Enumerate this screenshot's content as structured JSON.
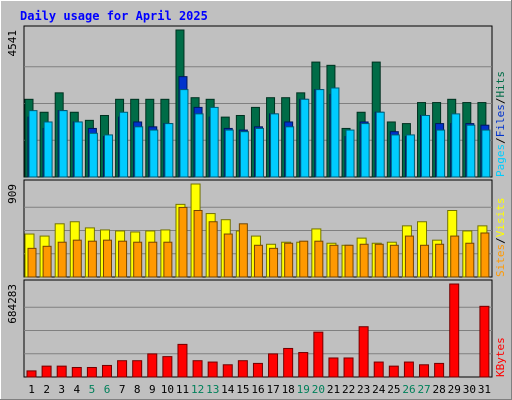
{
  "chart_data": {
    "type": "bar",
    "title": "Daily usage for April 2025",
    "categories": [
      "1",
      "2",
      "3",
      "4",
      "5",
      "6",
      "7",
      "8",
      "9",
      "10",
      "11",
      "12",
      "13",
      "14",
      "15",
      "16",
      "17",
      "18",
      "19",
      "20",
      "21",
      "22",
      "23",
      "24",
      "25",
      "26",
      "27",
      "28",
      "29",
      "30",
      "31"
    ],
    "weekend_days": [
      "5",
      "6",
      "12",
      "13",
      "19",
      "20",
      "26",
      "27"
    ],
    "panels": [
      {
        "id": "hits-panel",
        "scale_label": "4541",
        "ymax": 4541,
        "axis_label_parts": [
          "Pages",
          "/",
          "Files",
          "/",
          "Hits"
        ],
        "series": [
          {
            "name": "Hits",
            "color": "#006c47",
            "values": [
              2400,
              2000,
              2600,
              2000,
              1750,
              1900,
              2400,
              2400,
              2400,
              2400,
              4541,
              2450,
              2400,
              1850,
              1900,
              2150,
              2450,
              2450,
              2600,
              3550,
              3450,
              1500,
              2000,
              3550,
              1700,
              1650,
              2300,
              2300,
              2400,
              2300,
              2300
            ]
          },
          {
            "name": "Files",
            "color": "#0033cc",
            "values": [
              1850,
              1500,
              2050,
              1700,
              1500,
              1250,
              1850,
              1700,
              1550,
              1650,
              3100,
              2150,
              1850,
              1500,
              1450,
              1550,
              1950,
              1700,
              2400,
              2700,
              2550,
              1250,
              1700,
              2000,
              1400,
              1250,
              1900,
              1650,
              1650,
              1650,
              1600
            ]
          },
          {
            "name": "Pages",
            "color": "#00ccff",
            "values": [
              2050,
              1700,
              2050,
              1700,
              1350,
              1300,
              2000,
              1550,
              1450,
              1650,
              2700,
              1950,
              2150,
              1450,
              1400,
              1500,
              1950,
              1550,
              2400,
              2700,
              2750,
              1450,
              1650,
              2000,
              1300,
              1300,
              1900,
              1450,
              1950,
              1600,
              1450
            ]
          }
        ]
      },
      {
        "id": "visits-panel",
        "scale_label": "909",
        "ymax": 909,
        "axis_label_parts": [
          "Sites",
          "/",
          "Visits"
        ],
        "series": [
          {
            "name": "Visits",
            "color": "#ffff00",
            "values": [
              420,
              400,
              520,
              540,
              480,
              460,
              450,
              440,
              450,
              460,
              710,
              909,
              620,
              560,
              450,
              400,
              320,
              340,
              340,
              470,
              330,
              310,
              380,
              330,
              340,
              500,
              540,
              360,
              650,
              450,
              500
            ]
          },
          {
            "name": "Sites",
            "color": "#ff9900",
            "values": [
              280,
              300,
              340,
              360,
              350,
              360,
              350,
              340,
              340,
              340,
              680,
              650,
              540,
              420,
              520,
              310,
              280,
              330,
              350,
              350,
              310,
              310,
              320,
              320,
              310,
              400,
              310,
              320,
              400,
              330,
              430
            ]
          }
        ]
      },
      {
        "id": "kbytes-panel",
        "scale_label": "684283",
        "ymax": 684283,
        "axis_label_parts": [
          "KBytes"
        ],
        "series": [
          {
            "name": "KBytes",
            "color": "#ff0000",
            "values": [
              45000,
              80000,
              80000,
              70000,
              70000,
              85000,
              120000,
              120000,
              170000,
              150000,
              240000,
              120000,
              110000,
              90000,
              120000,
              100000,
              170000,
              210000,
              180000,
              330000,
              140000,
              140000,
              370000,
              110000,
              80000,
              110000,
              90000,
              100000,
              684283,
              0,
              520000
            ]
          }
        ]
      }
    ]
  }
}
